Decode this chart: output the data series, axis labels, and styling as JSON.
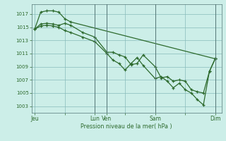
{
  "bg_color": "#cceee8",
  "line_color": "#2d6a2d",
  "grid_color": "#aad4cc",
  "grid_color_major": "#88bbbb",
  "xlabel": "Pression niveau de la mer( hPa )",
  "ylim": [
    1002,
    1018.5
  ],
  "yticks": [
    1003,
    1005,
    1007,
    1009,
    1011,
    1013,
    1015,
    1017
  ],
  "xtick_labels": [
    "Jeu",
    "",
    "Lun",
    "Ven",
    "",
    "Sam",
    "",
    "Dim"
  ],
  "xtick_positions": [
    0,
    5,
    10,
    12,
    15,
    20,
    25,
    30
  ],
  "vlines": [
    10,
    12,
    20,
    30
  ],
  "series1_x": [
    0,
    1,
    2,
    3,
    4,
    5,
    6,
    30
  ],
  "series1_y": [
    1014.7,
    1017.3,
    1017.5,
    1017.5,
    1017.3,
    1016.3,
    1015.8,
    1010.2
  ],
  "series2_x": [
    0,
    1,
    2,
    3,
    4,
    5,
    6,
    8,
    10,
    12,
    13,
    14,
    15,
    16,
    17,
    18,
    20,
    21,
    22,
    23,
    24,
    25,
    26,
    27,
    28,
    29,
    30
  ],
  "series2_y": [
    1014.7,
    1015.5,
    1015.6,
    1015.5,
    1015.3,
    1015.6,
    1015.3,
    1014.2,
    1013.5,
    1011.2,
    1011.2,
    1010.8,
    1010.5,
    1009.3,
    1009.5,
    1010.8,
    1009.0,
    1007.3,
    1007.5,
    1006.8,
    1007.0,
    1006.8,
    1005.5,
    1005.2,
    1005.0,
    1008.3,
    1010.3
  ],
  "series3_x": [
    0,
    1,
    2,
    3,
    4,
    5,
    6,
    8,
    10,
    12,
    13,
    14,
    15,
    16,
    17,
    18,
    20,
    21,
    22,
    23,
    24,
    25,
    26,
    27,
    28,
    29,
    30
  ],
  "series3_y": [
    1014.7,
    1015.2,
    1015.3,
    1015.2,
    1015.0,
    1014.5,
    1014.2,
    1013.5,
    1012.8,
    1011.0,
    1010.0,
    1009.5,
    1008.5,
    1009.5,
    1010.4,
    1009.2,
    1007.2,
    1007.5,
    1006.8,
    1005.8,
    1006.5,
    1005.5,
    1005.0,
    1004.0,
    1003.2,
    1008.3,
    1010.3
  ]
}
